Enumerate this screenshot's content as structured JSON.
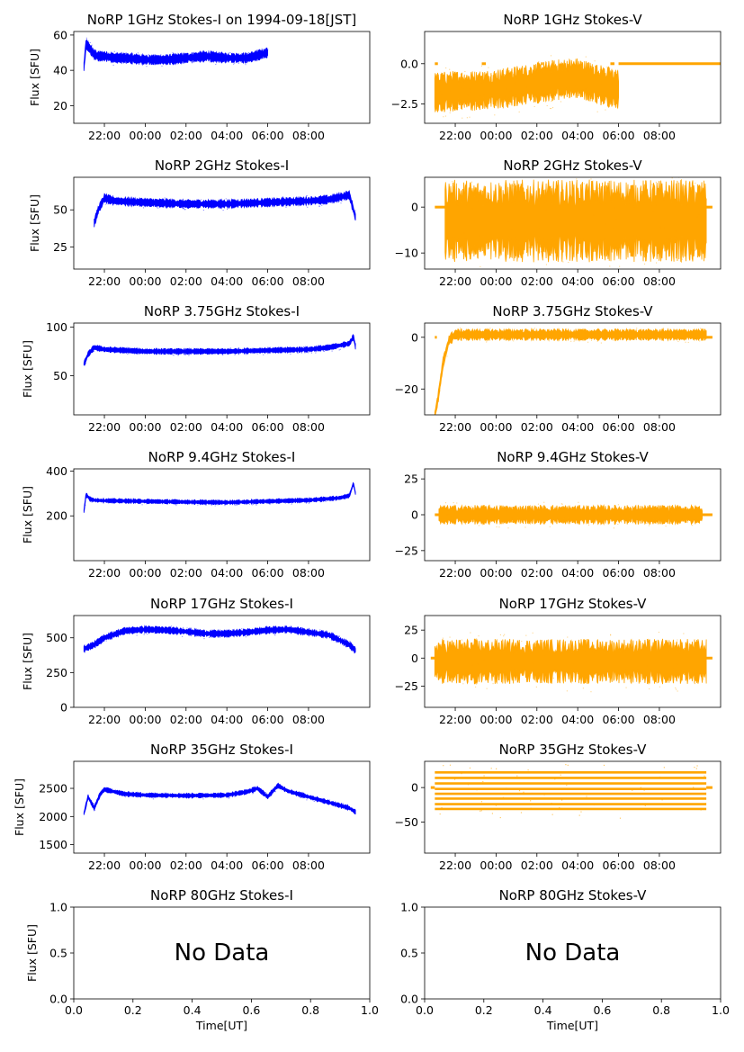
{
  "colors": {
    "stokes_i": "#0000ff",
    "stokes_v": "#ffa500",
    "axis": "#000000"
  },
  "time_ticks": [
    "22:00",
    "00:00",
    "02:00",
    "04:00",
    "06:00",
    "08:00"
  ],
  "chart_data": [
    {
      "id": "1g-i",
      "type": "scatter",
      "title": "NoRP 1GHz Stokes-I on 1994-09-18[JST]",
      "ylabel": "Flux [SFU]",
      "xlabel": "",
      "ylim": [
        10,
        62
      ],
      "yticks": [
        20,
        40,
        60
      ],
      "color": "stokes_i",
      "x_range_hours": [
        -3.5,
        11.0
      ],
      "data_range_hours": [
        -3.0,
        6.0
      ],
      "series": [
        {
          "x": [
            -3.0,
            -2.9,
            -2.7,
            -2.5,
            -2.3,
            -2.0,
            -1.5,
            -1.0,
            0,
            1,
            2,
            3,
            4,
            5,
            6
          ],
          "y": [
            42,
            55,
            52,
            49,
            48,
            48,
            47,
            47,
            46,
            46,
            47,
            48,
            47,
            47,
            50
          ]
        }
      ],
      "band": 4
    },
    {
      "id": "1g-v",
      "type": "scatter",
      "title": "NoRP 1GHz Stokes-V",
      "ylabel": "",
      "xlabel": "",
      "ylim": [
        -3.7,
        2.0
      ],
      "yticks": [
        -2.5,
        0.0
      ],
      "ytick_labels": [
        "−2.5",
        "0.0"
      ],
      "color": "stokes_v",
      "x_range_hours": [
        -3.5,
        11.0
      ],
      "data_range_hours": [
        -3.0,
        6.0
      ],
      "series": [
        {
          "x": [
            -3.0,
            -2,
            -1,
            0,
            1,
            2,
            3,
            4,
            5,
            6
          ],
          "y": [
            -1.8,
            -1.7,
            -1.7,
            -1.6,
            -1.4,
            -1.2,
            -1.0,
            -0.9,
            -1.3,
            -1.6
          ]
        }
      ],
      "band": 1.7,
      "zero_segments": [
        [
          -3.0,
          -2.85
        ],
        [
          -0.7,
          -0.5
        ],
        [
          2.2,
          2.3
        ],
        [
          5.6,
          5.8
        ],
        [
          6.0,
          11.0
        ]
      ]
    },
    {
      "id": "2g-i",
      "type": "scatter",
      "title": "NoRP 2GHz Stokes-I",
      "ylabel": "Flux [SFU]",
      "xlabel": "",
      "ylim": [
        10,
        72
      ],
      "yticks": [
        25,
        50
      ],
      "color": "stokes_i",
      "x_range_hours": [
        -3.5,
        11.0
      ],
      "data_range_hours": [
        -2.5,
        10.3
      ],
      "series": [
        {
          "x": [
            -2.5,
            -2.3,
            -2.0,
            -1.5,
            0,
            2,
            4,
            6,
            8,
            9,
            10,
            10.3
          ],
          "y": [
            41,
            50,
            58,
            56,
            55,
            54,
            54,
            55,
            56,
            57,
            60,
            45
          ]
        }
      ],
      "band": 4
    },
    {
      "id": "2g-v",
      "type": "scatter",
      "title": "NoRP 2GHz Stokes-V",
      "ylabel": "",
      "xlabel": "",
      "ylim": [
        -13.5,
        6.5
      ],
      "yticks": [
        -10,
        0
      ],
      "ytick_labels": [
        "−10",
        "0"
      ],
      "color": "stokes_v",
      "x_range_hours": [
        -3.5,
        11.0
      ],
      "data_range_hours": [
        -2.5,
        10.3
      ],
      "series": [
        {
          "x": [
            -2.5,
            10.3
          ],
          "y": [
            -3,
            -3
          ]
        }
      ],
      "band": 12,
      "zero_segments": [
        [
          -3.0,
          -2.5
        ],
        [
          10.3,
          10.6
        ]
      ]
    },
    {
      "id": "375g-i",
      "type": "scatter",
      "title": "NoRP 3.75GHz Stokes-I",
      "ylabel": "Flux [SFU]",
      "xlabel": "",
      "ylim": [
        10,
        104
      ],
      "yticks": [
        50,
        100
      ],
      "color": "stokes_i",
      "x_range_hours": [
        -3.5,
        11.0
      ],
      "data_range_hours": [
        -3.0,
        10.3
      ],
      "series": [
        {
          "x": [
            -3.0,
            -2.8,
            -2.5,
            -2,
            0,
            2,
            4,
            6,
            8,
            9,
            10,
            10.2,
            10.3
          ],
          "y": [
            62,
            72,
            79,
            77,
            75,
            75,
            75,
            76,
            77,
            79,
            83,
            90,
            80
          ]
        }
      ],
      "band": 4
    },
    {
      "id": "375g-v",
      "type": "scatter",
      "title": "NoRP 3.75GHz Stokes-V",
      "ylabel": "",
      "xlabel": "",
      "ylim": [
        -30,
        5.5
      ],
      "yticks": [
        -20,
        0
      ],
      "ytick_labels": [
        "−20",
        "0"
      ],
      "color": "stokes_v",
      "x_range_hours": [
        -3.5,
        11.0
      ],
      "data_range_hours": [
        -3.0,
        10.3
      ],
      "series": [
        {
          "x": [
            -3.0,
            -2.85,
            -2.6,
            -2.3,
            -2.0,
            0,
            4,
            8,
            10.3
          ],
          "y": [
            -30,
            -24,
            -10,
            -1,
            1,
            1,
            1,
            1,
            1
          ]
        }
      ],
      "band": 3,
      "zero_segments": [
        [
          -3.0,
          -2.9
        ],
        [
          10.3,
          10.6
        ]
      ]
    },
    {
      "id": "94g-i",
      "type": "scatter",
      "title": "NoRP 9.4GHz Stokes-I",
      "ylabel": "Flux [SFU]",
      "xlabel": "",
      "ylim": [
        0,
        410
      ],
      "yticks": [
        200,
        400
      ],
      "color": "stokes_i",
      "x_range_hours": [
        -3.5,
        11.0
      ],
      "data_range_hours": [
        -3.0,
        10.3
      ],
      "series": [
        {
          "x": [
            -3.0,
            -2.9,
            -2.7,
            -2.5,
            -2,
            0,
            2,
            4,
            6,
            8,
            9.5,
            10,
            10.2,
            10.3
          ],
          "y": [
            220,
            295,
            275,
            270,
            268,
            265,
            262,
            260,
            265,
            270,
            280,
            290,
            345,
            300
          ]
        }
      ],
      "band": 14
    },
    {
      "id": "94g-v",
      "type": "scatter",
      "title": "NoRP 9.4GHz Stokes-V",
      "ylabel": "",
      "xlabel": "",
      "ylim": [
        -32,
        32
      ],
      "yticks": [
        -25,
        0,
        25
      ],
      "ytick_labels": [
        "−25",
        "0",
        "25"
      ],
      "color": "stokes_v",
      "x_range_hours": [
        -3.5,
        11.0
      ],
      "data_range_hours": [
        -2.8,
        10.1
      ],
      "series": [
        {
          "x": [
            -2.8,
            10.1
          ],
          "y": [
            0,
            0
          ]
        }
      ],
      "band": 9,
      "zero_segments": [
        [
          -3.0,
          -2.8
        ],
        [
          10.1,
          10.6
        ]
      ]
    },
    {
      "id": "17g-i",
      "type": "scatter",
      "title": "NoRP 17GHz Stokes-I",
      "ylabel": "Flux [SFU]",
      "xlabel": "",
      "ylim": [
        0,
        660
      ],
      "yticks": [
        0,
        250,
        500
      ],
      "color": "stokes_i",
      "x_range_hours": [
        -3.5,
        11.0
      ],
      "data_range_hours": [
        -3.0,
        10.3
      ],
      "series": [
        {
          "x": [
            -3.0,
            -2.5,
            -2,
            -1,
            0,
            1,
            2,
            3,
            4,
            5,
            6,
            7,
            8,
            9,
            10,
            10.3
          ],
          "y": [
            420,
            450,
            500,
            550,
            560,
            555,
            545,
            530,
            530,
            540,
            555,
            560,
            540,
            520,
            450,
            410
          ]
        }
      ],
      "band": 35
    },
    {
      "id": "17g-v",
      "type": "scatter",
      "title": "NoRP 17GHz Stokes-V",
      "ylabel": "",
      "xlabel": "",
      "ylim": [
        -44,
        38
      ],
      "yticks": [
        -25,
        0,
        25
      ],
      "ytick_labels": [
        "−25",
        "0",
        "25"
      ],
      "color": "stokes_v",
      "x_range_hours": [
        -3.5,
        11.0
      ],
      "data_range_hours": [
        -3.0,
        10.3
      ],
      "series": [
        {
          "x": [
            -3.0,
            10.3
          ],
          "y": [
            -3,
            -3
          ]
        }
      ],
      "band": 27,
      "zero_segments": [
        [
          -3.2,
          -3.0
        ],
        [
          10.3,
          10.6
        ]
      ]
    },
    {
      "id": "35g-i",
      "type": "scatter",
      "title": "NoRP 35GHz Stokes-I",
      "ylabel": "Flux [SFU]",
      "xlabel": "",
      "ylim": [
        1350,
        2980
      ],
      "yticks": [
        1500,
        2000,
        2500
      ],
      "color": "stokes_i",
      "x_range_hours": [
        -3.5,
        11.0
      ],
      "data_range_hours": [
        -3.0,
        10.3
      ],
      "series": [
        {
          "x": [
            -3.0,
            -2.8,
            -2.5,
            -2.2,
            -2,
            -1,
            0,
            2,
            4,
            5,
            5.5,
            6,
            6.5,
            7,
            8,
            9,
            10,
            10.3
          ],
          "y": [
            2050,
            2350,
            2150,
            2400,
            2480,
            2400,
            2380,
            2370,
            2380,
            2440,
            2500,
            2350,
            2550,
            2450,
            2350,
            2250,
            2150,
            2080
          ]
        }
      ],
      "band": 60
    },
    {
      "id": "35g-v",
      "type": "scatter",
      "title": "NoRP 35GHz Stokes-V",
      "ylabel": "",
      "xlabel": "",
      "ylim": [
        -95,
        38
      ],
      "yticks": [
        -50,
        0
      ],
      "ytick_labels": [
        "−50",
        "0"
      ],
      "color": "stokes_v",
      "x_range_hours": [
        -3.5,
        11.0
      ],
      "data_range_hours": [
        -3.0,
        10.3
      ],
      "levels": [
        22,
        14,
        6,
        -2,
        -9,
        -16,
        -24,
        -31
      ],
      "zero_segments": [
        [
          -3.2,
          -3.0
        ],
        [
          10.3,
          10.6
        ]
      ]
    },
    {
      "id": "80g-i",
      "type": "empty",
      "title": "NoRP 80GHz Stokes-I",
      "ylabel": "Flux [SFU]",
      "xlabel": "Time[UT]",
      "ylim": [
        0,
        1
      ],
      "xlim": [
        0,
        1
      ],
      "yticks": [
        0.0,
        0.5,
        1.0
      ],
      "xticks": [
        0.0,
        0.2,
        0.4,
        0.6,
        0.8,
        1.0
      ],
      "message": "No Data"
    },
    {
      "id": "80g-v",
      "type": "empty",
      "title": "NoRP 80GHz Stokes-V",
      "ylabel": "",
      "xlabel": "Time[UT]",
      "ylim": [
        0,
        1
      ],
      "xlim": [
        0,
        1
      ],
      "yticks": [
        0.0,
        0.5,
        1.0
      ],
      "xticks": [
        0.0,
        0.2,
        0.4,
        0.6,
        0.8,
        1.0
      ],
      "message": "No Data"
    }
  ]
}
